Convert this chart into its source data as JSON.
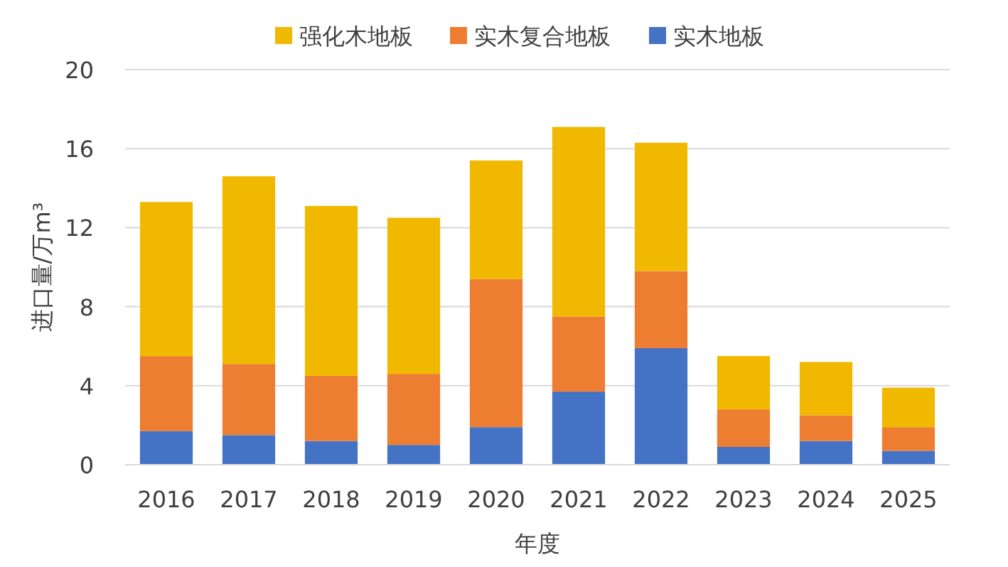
{
  "chart_data": {
    "type": "bar",
    "stacked": true,
    "categories": [
      "2016",
      "2017",
      "2018",
      "2019",
      "2020",
      "2021",
      "2022",
      "2023",
      "2024",
      "2025"
    ],
    "series": [
      {
        "name": "实木地板",
        "color": "#4472c4",
        "values": [
          1.7,
          1.5,
          1.2,
          1.0,
          1.9,
          3.7,
          5.9,
          0.9,
          1.2,
          0.7
        ]
      },
      {
        "name": "实木复合地板",
        "color": "#ed7d31",
        "values": [
          3.8,
          3.6,
          3.3,
          3.6,
          7.5,
          3.8,
          3.9,
          1.9,
          1.3,
          1.2
        ]
      },
      {
        "name": "强化木地板",
        "color": "#f0b900",
        "values": [
          7.8,
          9.5,
          8.6,
          7.9,
          6.0,
          9.6,
          6.5,
          2.7,
          2.7,
          2.0
        ]
      }
    ],
    "ylim": [
      0,
      20
    ],
    "yticks": [
      0,
      4,
      8,
      12,
      16,
      20
    ],
    "grid": "y",
    "legend": "top",
    "xlabel": "年度",
    "ylabel": "进口量/万m³"
  }
}
